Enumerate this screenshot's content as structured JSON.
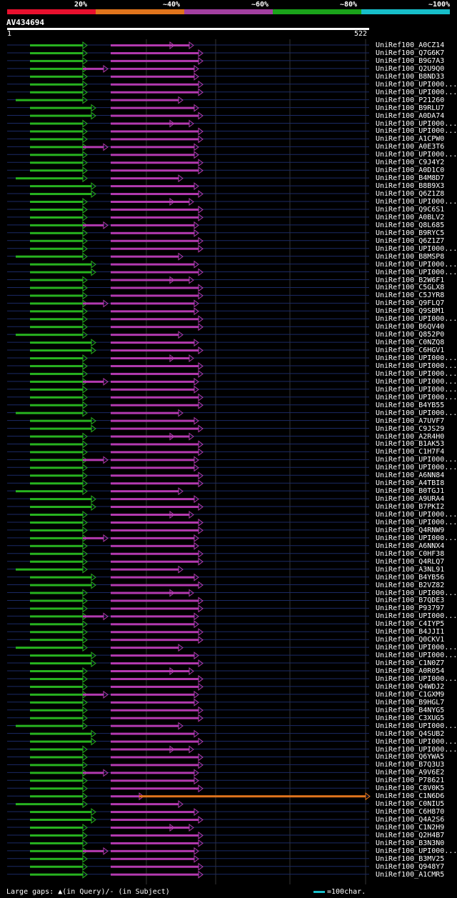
{
  "legend": {
    "colors": [
      "#e8102e",
      "#e0741c",
      "#a23fa0",
      "#1aa31a",
      "#17bec9"
    ],
    "labels": [
      "20%",
      "~40%",
      "~60%",
      "~80%",
      "~100%"
    ]
  },
  "query": {
    "id": "AV434694",
    "start": "1",
    "end": "522"
  },
  "footer": {
    "text": "Large gaps: ▲(in Query)/- (in Subject)",
    "scale_label": "=100char."
  },
  "hits": [
    "UniRef100_A0CZ14",
    "UniRef100_Q7G6K7",
    "UniRef100_B9G7A3",
    "UniRef100_Q2U9Q0",
    "UniRef100_B8ND33",
    "UniRef100_UPI000...",
    "UniRef100_UPI000...",
    "UniRef100_P21260",
    "UniRef100_B9RLU7",
    "UniRef100_A0DA74",
    "UniRef100_UPI000...",
    "UniRef100_UPI000...",
    "UniRef100_A1CPW0",
    "UniRef100_A0E3T6",
    "UniRef100_UPI000...",
    "UniRef100_C9J4Y2",
    "UniRef100_A0D1C0",
    "UniRef100_B4M8D7",
    "UniRef100_B8B9X3",
    "UniRef100_Q6Z1Z8",
    "UniRef100_UPI000...",
    "UniRef100_Q9C6S1",
    "UniRef100_A0BLV2",
    "UniRef100_Q8L685",
    "UniRef100_B9RYC5",
    "UniRef100_Q6Z1Z7",
    "UniRef100_UPI000...",
    "UniRef100_B8MSP8",
    "UniRef100_UPI000...",
    "UniRef100_UPI000...",
    "UniRef100_B2W6F1",
    "UniRef100_C5GLX8",
    "UniRef100_C5JYR8",
    "UniRef100_Q9FLQ7",
    "UniRef100_Q9SBM1",
    "UniRef100_UPI000...",
    "UniRef100_B6QV40",
    "UniRef100_Q852P0",
    "UniRef100_C0NZQ8",
    "UniRef100_C6HGV1",
    "UniRef100_UPI000...",
    "UniRef100_UPI000...",
    "UniRef100_UPI000...",
    "UniRef100_UPI000...",
    "UniRef100_UPI000...",
    "UniRef100_UPI000...",
    "UniRef100_B4YB55",
    "UniRef100_UPI000...",
    "UniRef100_A7UVF7",
    "UniRef100_C9JS29",
    "UniRef100_A2R4H0",
    "UniRef100_B1AK53",
    "UniRef100_C1H7F4",
    "UniRef100_UPI000...",
    "UniRef100_UPI000...",
    "UniRef100_A6NN84",
    "UniRef100_A4TBI8",
    "UniRef100_B0TGJ1",
    "UniRef100_A9URA4",
    "UniRef100_B7PKI2",
    "UniRef100_UPI000...",
    "UniRef100_UPI000...",
    "UniRef100_Q4RNW9",
    "UniRef100_UPI000...",
    "UniRef100_A6NNX4",
    "UniRef100_C0HF38",
    "UniRef100_Q4RLQ7",
    "UniRef100_A3NL91",
    "UniRef100_B4YB56",
    "UniRef100_B2VZ82",
    "UniRef100_UPI000...",
    "UniRef100_B7QDE3",
    "UniRef100_P93797",
    "UniRef100_UPI000...",
    "UniRef100_C4IYP5",
    "UniRef100_B4JJI1",
    "UniRef100_Q0CKV1",
    "UniRef100_UPI000...",
    "UniRef100_UPI000...",
    "UniRef100_C1N0Z7",
    "UniRef100_A0R054",
    "UniRef100_UPI000...",
    "UniRef100_Q4WDJ2",
    "UniRef100_C1GXM9",
    "UniRef100_B9HGL7",
    "UniRef100_B4NYG5",
    "UniRef100_C3XUG5",
    "UniRef100_UPI000...",
    "UniRef100_Q4SUB2",
    "UniRef100_UPI000...",
    "UniRef100_UPI000...",
    "UniRef100_Q6YWA5",
    "UniRef100_B7Q3U3",
    "UniRef100_A9V6E2",
    "UniRef100_P78621",
    "UniRef100_C8V0K5",
    "UniRef100_C1N6D6",
    "UniRef100_C0NIU5",
    "UniRef100_C6H870",
    "UniRef100_Q4A2S6",
    "UniRef100_C1N2H9",
    "UniRef100_Q2H4B7",
    "UniRef100_B3N3N0",
    "UniRef100_UPI000...",
    "UniRef100_B3MV25",
    "UniRef100_Q948Y7",
    "UniRef100_A1CMR5"
  ]
}
